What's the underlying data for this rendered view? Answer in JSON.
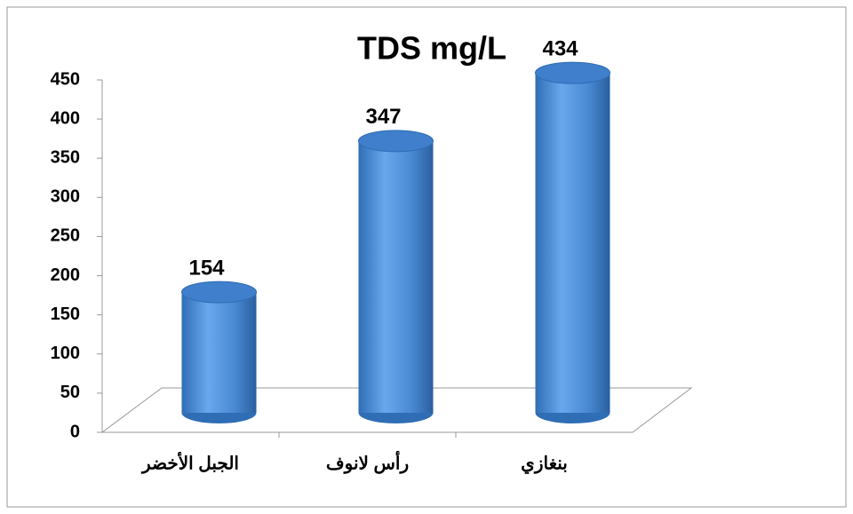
{
  "chart_data": {
    "type": "bar",
    "title": "TDS mg/L",
    "categories": [
      "الجبل الأخضر",
      "رأس لانوف",
      "بنغازي"
    ],
    "values": [
      154,
      347,
      434
    ],
    "color": "#4a8ad4",
    "ylim": [
      0,
      450
    ],
    "yticks": [
      0,
      50,
      100,
      150,
      200,
      250,
      300,
      350,
      400,
      450
    ]
  }
}
